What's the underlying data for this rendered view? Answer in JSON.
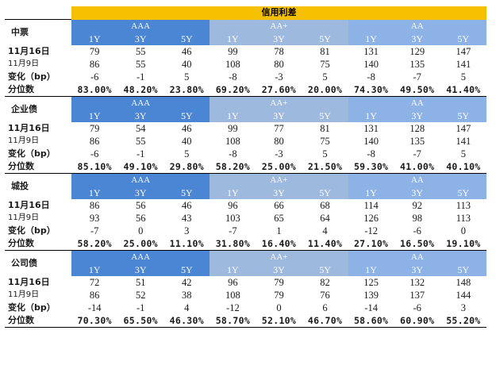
{
  "title": "信用利差",
  "groups": [
    "AAA",
    "AA+",
    "AA"
  ],
  "tenors": [
    "1Y",
    "3Y",
    "5Y"
  ],
  "sections": [
    {
      "name": "中票",
      "rows": [
        {
          "label": "11月16日",
          "values": [
            "79",
            "55",
            "46",
            "99",
            "78",
            "81",
            "131",
            "129",
            "147"
          ]
        },
        {
          "label": "11月9日",
          "values": [
            "86",
            "55",
            "40",
            "108",
            "80",
            "75",
            "140",
            "135",
            "141"
          ]
        },
        {
          "label": "变化（bp）",
          "values": [
            "-6",
            "-1",
            "5",
            "-8",
            "-3",
            "5",
            "-8",
            "-7",
            "5"
          ]
        },
        {
          "label": "分位数",
          "values": [
            "83.00%",
            "48.20%",
            "23.80%",
            "69.20%",
            "27.60%",
            "20.00%",
            "74.30%",
            "49.50%",
            "41.40%"
          ]
        }
      ]
    },
    {
      "name": "企业债",
      "rows": [
        {
          "label": "11月16日",
          "values": [
            "79",
            "54",
            "46",
            "99",
            "77",
            "81",
            "131",
            "128",
            "147"
          ]
        },
        {
          "label": "11月9日",
          "values": [
            "86",
            "55",
            "40",
            "108",
            "80",
            "75",
            "140",
            "135",
            "141"
          ]
        },
        {
          "label": "变化（bp）",
          "values": [
            "-6",
            "-1",
            "5",
            "-8",
            "-3",
            "5",
            "-8",
            "-7",
            "5"
          ]
        },
        {
          "label": "分位数",
          "values": [
            "85.10%",
            "49.10%",
            "29.80%",
            "58.20%",
            "25.00%",
            "21.50%",
            "59.30%",
            "41.00%",
            "40.10%"
          ]
        }
      ]
    },
    {
      "name": "城投",
      "rows": [
        {
          "label": "11月16日",
          "values": [
            "86",
            "56",
            "46",
            "96",
            "66",
            "68",
            "114",
            "92",
            "113"
          ]
        },
        {
          "label": "11月9日",
          "values": [
            "93",
            "56",
            "43",
            "103",
            "65",
            "64",
            "126",
            "98",
            "113"
          ]
        },
        {
          "label": "变化（bp）",
          "values": [
            "-7",
            "0",
            "3",
            "-7",
            "1",
            "4",
            "-12",
            "-6",
            "0"
          ]
        },
        {
          "label": "分位数",
          "values": [
            "58.20%",
            "25.00%",
            "11.10%",
            "31.80%",
            "16.40%",
            "11.40%",
            "27.10%",
            "16.50%",
            "19.10%"
          ]
        }
      ]
    },
    {
      "name": "公司债",
      "rows": [
        {
          "label": "11月16日",
          "values": [
            "72",
            "51",
            "42",
            "96",
            "79",
            "82",
            "125",
            "132",
            "148"
          ]
        },
        {
          "label": "11月9日",
          "values": [
            "86",
            "52",
            "38",
            "108",
            "79",
            "76",
            "139",
            "137",
            "144"
          ]
        },
        {
          "label": "变化（bp）",
          "values": [
            "-14",
            "-1",
            "4",
            "-12",
            "0",
            "6",
            "-14",
            "-6",
            "3"
          ]
        },
        {
          "label": "分位数",
          "values": [
            "70.30%",
            "65.50%",
            "46.30%",
            "58.70%",
            "52.10%",
            "46.70%",
            "58.60%",
            "60.90%",
            "55.20%"
          ]
        }
      ]
    }
  ]
}
